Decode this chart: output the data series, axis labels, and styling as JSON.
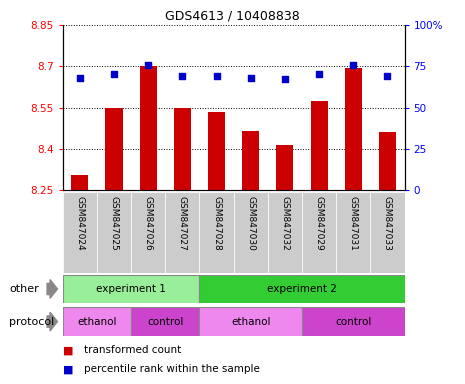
{
  "title": "GDS4613 / 10408838",
  "samples": [
    "GSM847024",
    "GSM847025",
    "GSM847026",
    "GSM847027",
    "GSM847028",
    "GSM847030",
    "GSM847032",
    "GSM847029",
    "GSM847031",
    "GSM847033"
  ],
  "bar_values": [
    8.305,
    8.55,
    8.7,
    8.55,
    8.535,
    8.465,
    8.415,
    8.575,
    8.695,
    8.46
  ],
  "dot_values": [
    68,
    70,
    76,
    69,
    69,
    68,
    67,
    70,
    76,
    69
  ],
  "ylim_left": [
    8.25,
    8.85
  ],
  "ylim_right": [
    0,
    100
  ],
  "yticks_left": [
    8.25,
    8.4,
    8.55,
    8.7,
    8.85
  ],
  "yticks_right": [
    0,
    25,
    50,
    75,
    100
  ],
  "ytick_labels_right": [
    "0",
    "25",
    "50",
    "75",
    "100%"
  ],
  "bar_color": "#cc0000",
  "dot_color": "#0000cc",
  "grid_color": "#000000",
  "bar_bottom": 8.25,
  "groups": [
    {
      "label": "experiment 1",
      "start": 0,
      "end": 4,
      "color": "#99ee99"
    },
    {
      "label": "experiment 2",
      "start": 4,
      "end": 10,
      "color": "#33cc33"
    }
  ],
  "protocols": [
    {
      "label": "ethanol",
      "start": 0,
      "end": 2,
      "color": "#ee88ee"
    },
    {
      "label": "control",
      "start": 2,
      "end": 4,
      "color": "#cc44cc"
    },
    {
      "label": "ethanol",
      "start": 4,
      "end": 7,
      "color": "#ee88ee"
    },
    {
      "label": "control",
      "start": 7,
      "end": 10,
      "color": "#cc44cc"
    }
  ],
  "legend_items": [
    {
      "label": "transformed count",
      "color": "#cc0000"
    },
    {
      "label": "percentile rank within the sample",
      "color": "#0000cc"
    }
  ],
  "other_label": "other",
  "protocol_label": "protocol",
  "subplot_bg": "#cccccc"
}
